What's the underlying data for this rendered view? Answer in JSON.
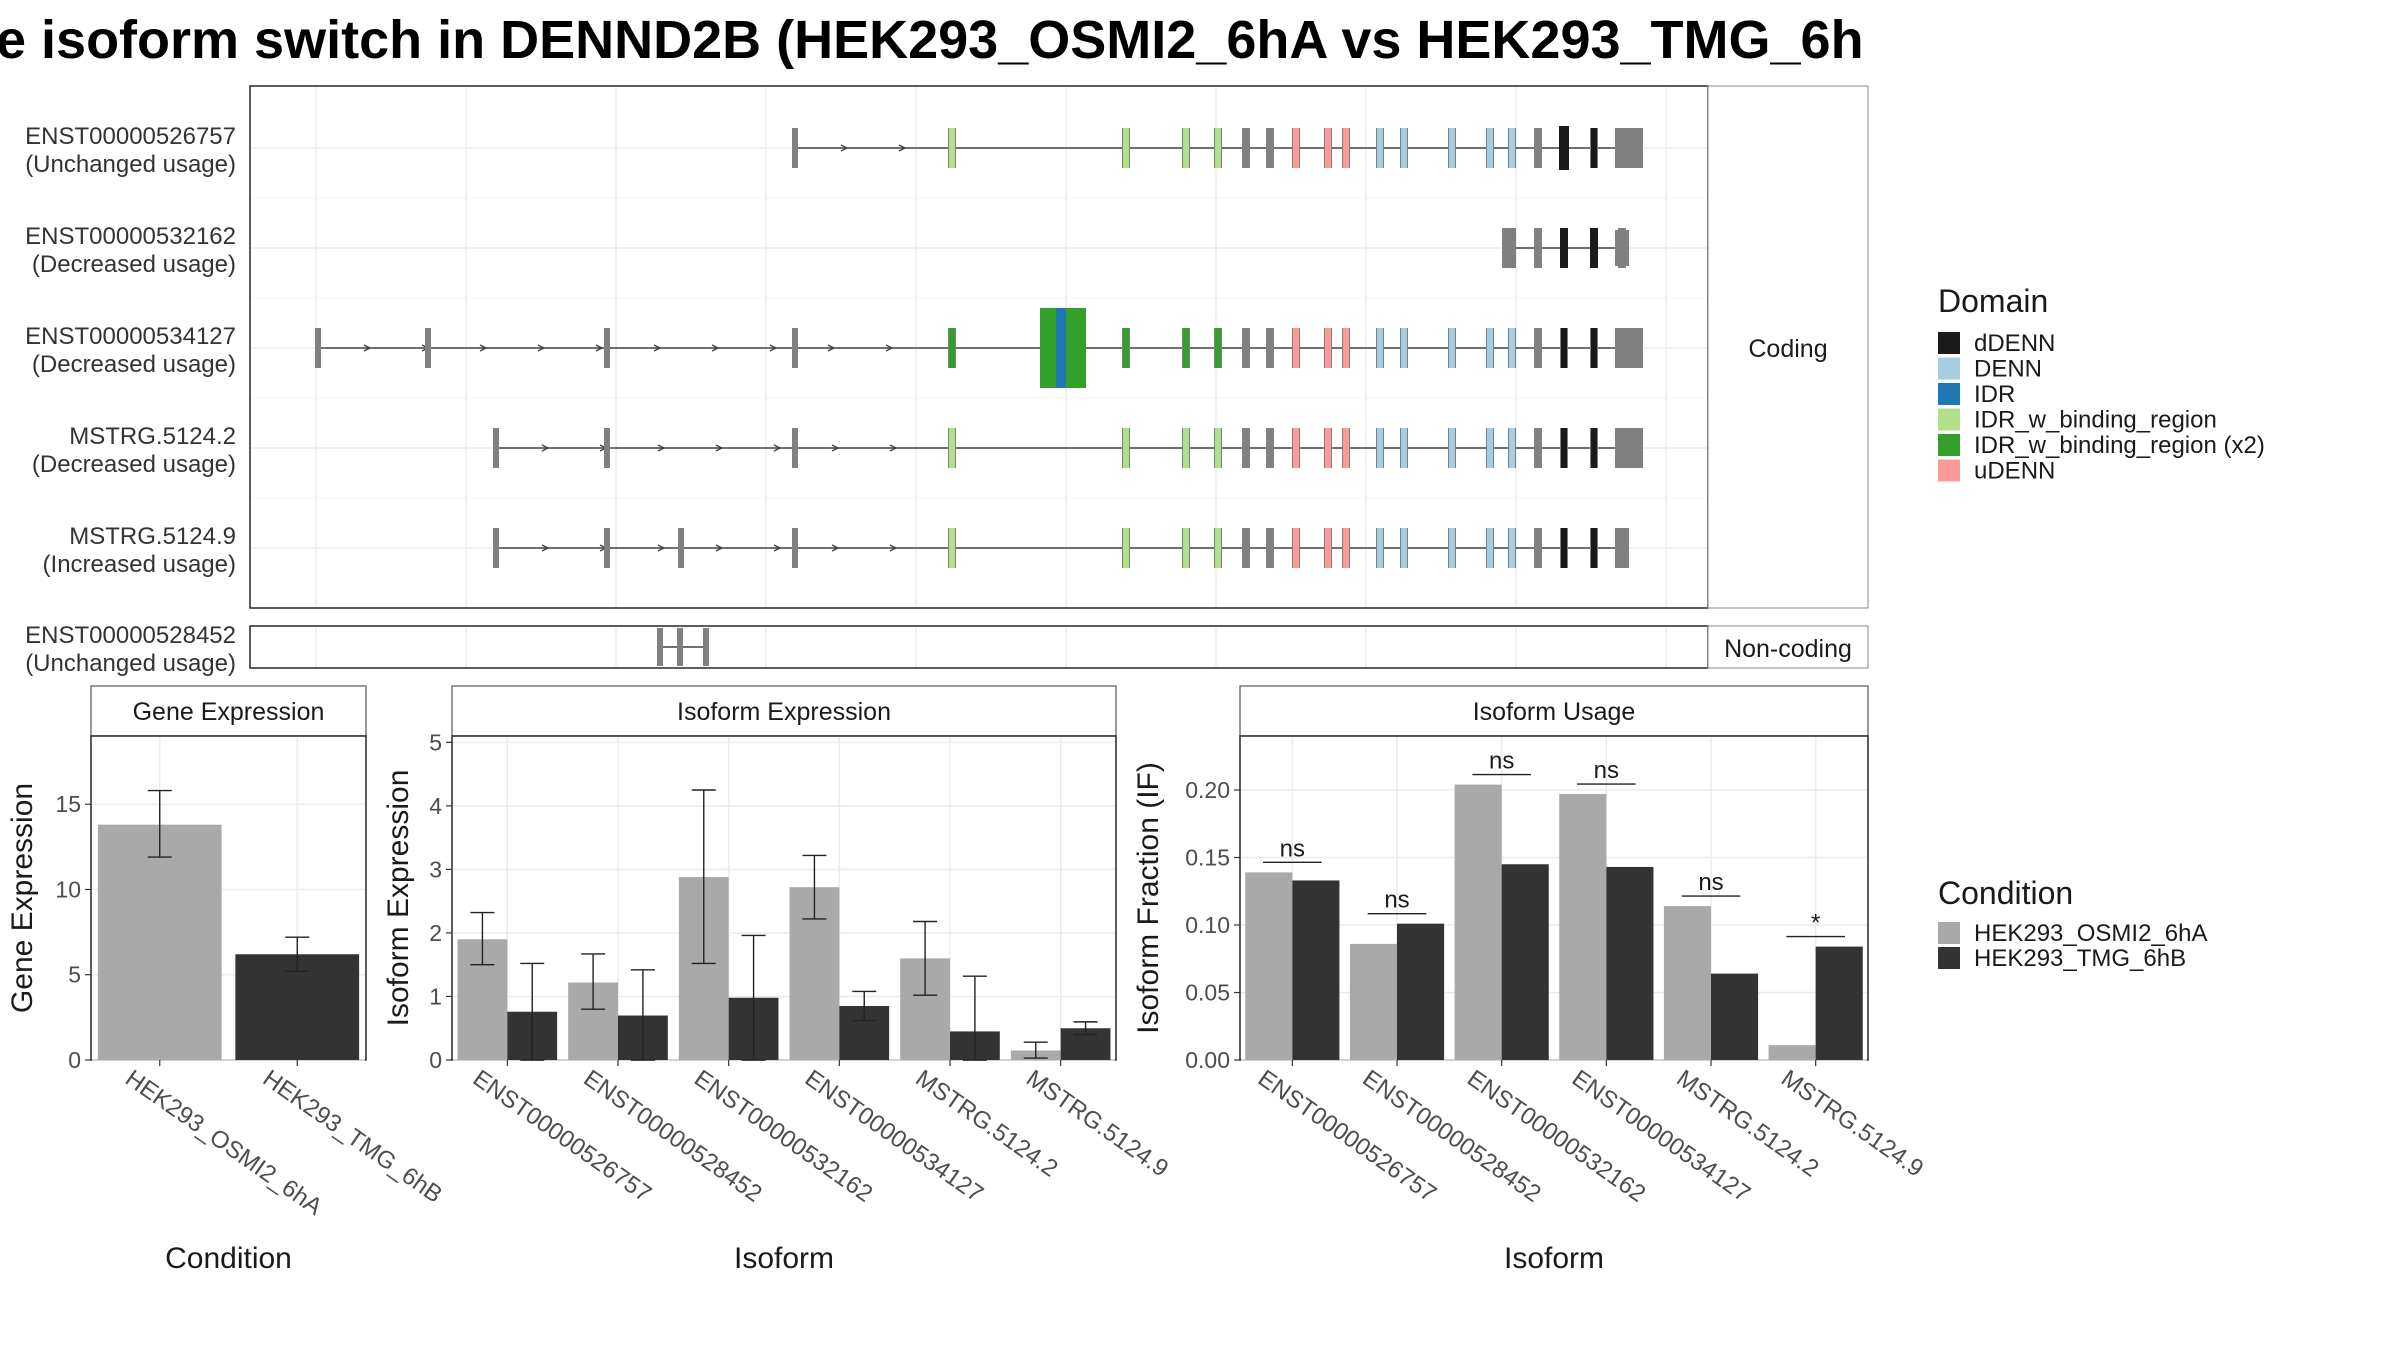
{
  "title": "e isoform switch in DENND2B (HEK293_OSMI2_6hA vs HEK293_TMG_6h",
  "colors": {
    "intron": "#444444",
    "exon": "#808080",
    "dDENN": "#1a1a1a",
    "DENN": "#a6cee3",
    "IDR": "#1f78b4",
    "IDR_w_binding_region": "#b2df8a",
    "IDR_w_binding_region (x2)": "#33a02c",
    "uDENN": "#fb9a99",
    "cond_A": "#a9a9a9",
    "cond_B": "#333333"
  },
  "transcripts": {
    "coding_strip": "Coding",
    "noncoding_strip": "Non-coding",
    "coding": [
      {
        "id": "ENST00000526757",
        "usage": "(Unchanged usage)"
      },
      {
        "id": "ENST00000532162",
        "usage": "(Decreased usage)"
      },
      {
        "id": "ENST00000534127",
        "usage": "(Decreased usage)"
      },
      {
        "id": "MSTRG.5124.2",
        "usage": "(Decreased usage)"
      },
      {
        "id": "MSTRG.5124.9",
        "usage": "(Increased usage)"
      }
    ],
    "noncoding": [
      {
        "id": "ENST00000528452",
        "usage": "(Unchanged usage)"
      }
    ]
  },
  "legend_domain": {
    "title": "Domain",
    "items": [
      "dDENN",
      "DENN",
      "IDR",
      "IDR_w_binding_region",
      "IDR_w_binding_region (x2)",
      "uDENN"
    ]
  },
  "legend_condition": {
    "title": "Condition",
    "items": [
      "HEK293_OSMI2_6hA",
      "HEK293_TMG_6hB"
    ]
  },
  "chart_data": [
    {
      "type": "bar",
      "title": "Gene Expression",
      "xlabel": "Condition",
      "ylabel": "Gene Expression",
      "categories": [
        "HEK293_OSMI2_6hA",
        "HEK293_TMG_6hB"
      ],
      "values": [
        13.8,
        6.2
      ],
      "error_low": [
        11.9,
        5.2
      ],
      "error_high": [
        15.8,
        7.2
      ],
      "ylim": [
        0,
        19
      ],
      "yticks": [
        0,
        5,
        10,
        15
      ]
    },
    {
      "type": "bar",
      "title": "Isoform Expression",
      "xlabel": "Isoform",
      "ylabel": "Isoform Expression",
      "categories": [
        "ENST00000526757",
        "ENST00000528452",
        "ENST00000532162",
        "ENST00000534127",
        "MSTRG.5124.2",
        "MSTRG.5124.9"
      ],
      "series": [
        {
          "name": "HEK293_OSMI2_6hA",
          "values": [
            1.9,
            1.22,
            2.88,
            2.72,
            1.6,
            0.15
          ],
          "error_low": [
            1.5,
            0.8,
            1.52,
            2.22,
            1.02,
            0.03
          ],
          "error_high": [
            2.32,
            1.67,
            4.25,
            3.22,
            2.18,
            0.28
          ]
        },
        {
          "name": "HEK293_TMG_6hB",
          "values": [
            0.76,
            0.7,
            0.98,
            0.85,
            0.45,
            0.5
          ],
          "error_low": [
            0,
            0,
            0,
            0.62,
            0,
            0.4
          ],
          "error_high": [
            1.52,
            1.42,
            1.96,
            1.08,
            1.32,
            0.6
          ]
        }
      ],
      "ylim": [
        0,
        5.1
      ],
      "yticks": [
        0,
        1,
        2,
        3,
        4,
        5
      ]
    },
    {
      "type": "bar",
      "title": "Isoform Usage",
      "xlabel": "Isoform",
      "ylabel": "Isoform Fraction (IF)",
      "categories": [
        "ENST00000526757",
        "ENST00000528452",
        "ENST00000532162",
        "ENST00000534127",
        "MSTRG.5124.2",
        "MSTRG.5124.9"
      ],
      "series": [
        {
          "name": "HEK293_OSMI2_6hA",
          "values": [
            0.139,
            0.086,
            0.204,
            0.197,
            0.114,
            0.011
          ]
        },
        {
          "name": "HEK293_TMG_6hB",
          "values": [
            0.133,
            0.101,
            0.145,
            0.143,
            0.064,
            0.084
          ]
        }
      ],
      "significance": [
        "ns",
        "ns",
        "ns",
        "ns",
        "ns",
        "*"
      ],
      "ylim": [
        0,
        0.24
      ],
      "yticks": [
        "0.00",
        "0.05",
        "0.10",
        "0.15",
        "0.20"
      ]
    }
  ]
}
